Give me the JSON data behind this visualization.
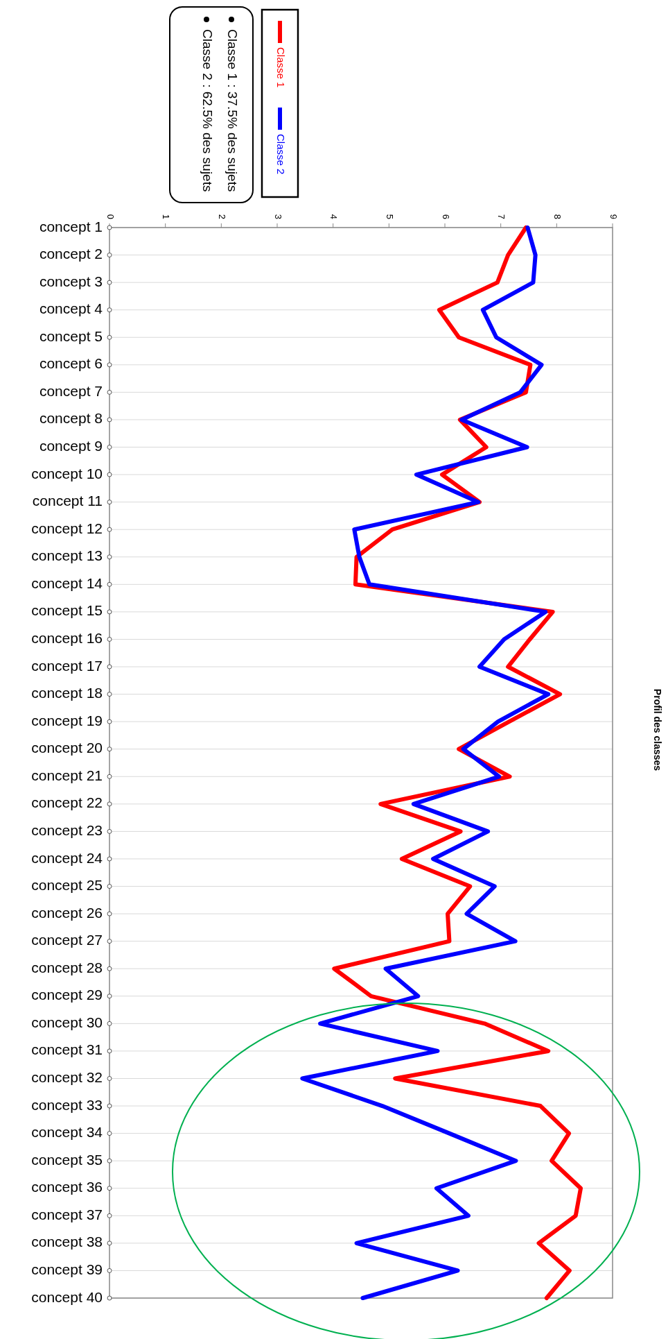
{
  "chart_data": {
    "type": "line",
    "orientation": "horizontal",
    "title": "Profil des classes",
    "categories": [
      "concept 1",
      "concept 2",
      "concept 3",
      "concept 4",
      "concept 5",
      "concept 6",
      "concept 7",
      "concept 8",
      "concept 9",
      "concept 10",
      "concept 11",
      "concept 12",
      "concept 13",
      "concept 14",
      "concept 15",
      "concept 16",
      "concept 17",
      "concept 18",
      "concept 19",
      "concept 20",
      "concept 21",
      "concept 22",
      "concept 23",
      "concept 24",
      "concept 25",
      "concept 26",
      "concept 27",
      "concept 28",
      "concept 29",
      "concept 30",
      "concept 31",
      "concept 32",
      "concept 33",
      "concept 34",
      "concept 35",
      "concept 36",
      "concept 37",
      "concept 38",
      "concept 39",
      "concept 40"
    ],
    "series": [
      {
        "name": "Classe 1",
        "color": "#ff0000",
        "values": [
          7.45,
          7.13,
          6.94,
          5.9,
          6.25,
          7.53,
          7.45,
          6.27,
          6.74,
          5.95,
          6.62,
          5.06,
          4.42,
          4.4,
          7.93,
          7.52,
          7.13,
          8.06,
          7.15,
          6.25,
          7.16,
          4.85,
          6.28,
          5.23,
          6.45,
          6.05,
          6.08,
          4.02,
          4.68,
          6.71,
          7.85,
          5.11,
          7.71,
          8.22,
          7.91,
          8.43,
          8.34,
          7.68,
          8.23,
          7.82
        ]
      },
      {
        "name": "Classe 2",
        "color": "#0000ff",
        "values": [
          7.48,
          7.62,
          7.58,
          6.68,
          6.92,
          7.73,
          7.35,
          6.3,
          7.47,
          5.49,
          6.6,
          4.38,
          4.47,
          4.65,
          7.8,
          7.06,
          6.62,
          7.85,
          6.95,
          6.33,
          6.97,
          5.44,
          6.77,
          5.79,
          6.89,
          6.39,
          7.26,
          4.94,
          5.52,
          3.77,
          5.87,
          3.45,
          4.88,
          6.08,
          7.27,
          5.85,
          6.42,
          4.42,
          6.23,
          4.53
        ]
      }
    ],
    "xlim": [
      0,
      9
    ],
    "xticks": [
      0,
      1,
      2,
      3,
      4,
      5,
      6,
      7,
      8,
      9
    ],
    "grid": "y",
    "legend": "top",
    "marker": "none",
    "line_style": "solid",
    "annotations": [
      "Classe 1 : 37.5% des sujets",
      "Classe 2 : 62.5% des sujets"
    ]
  }
}
